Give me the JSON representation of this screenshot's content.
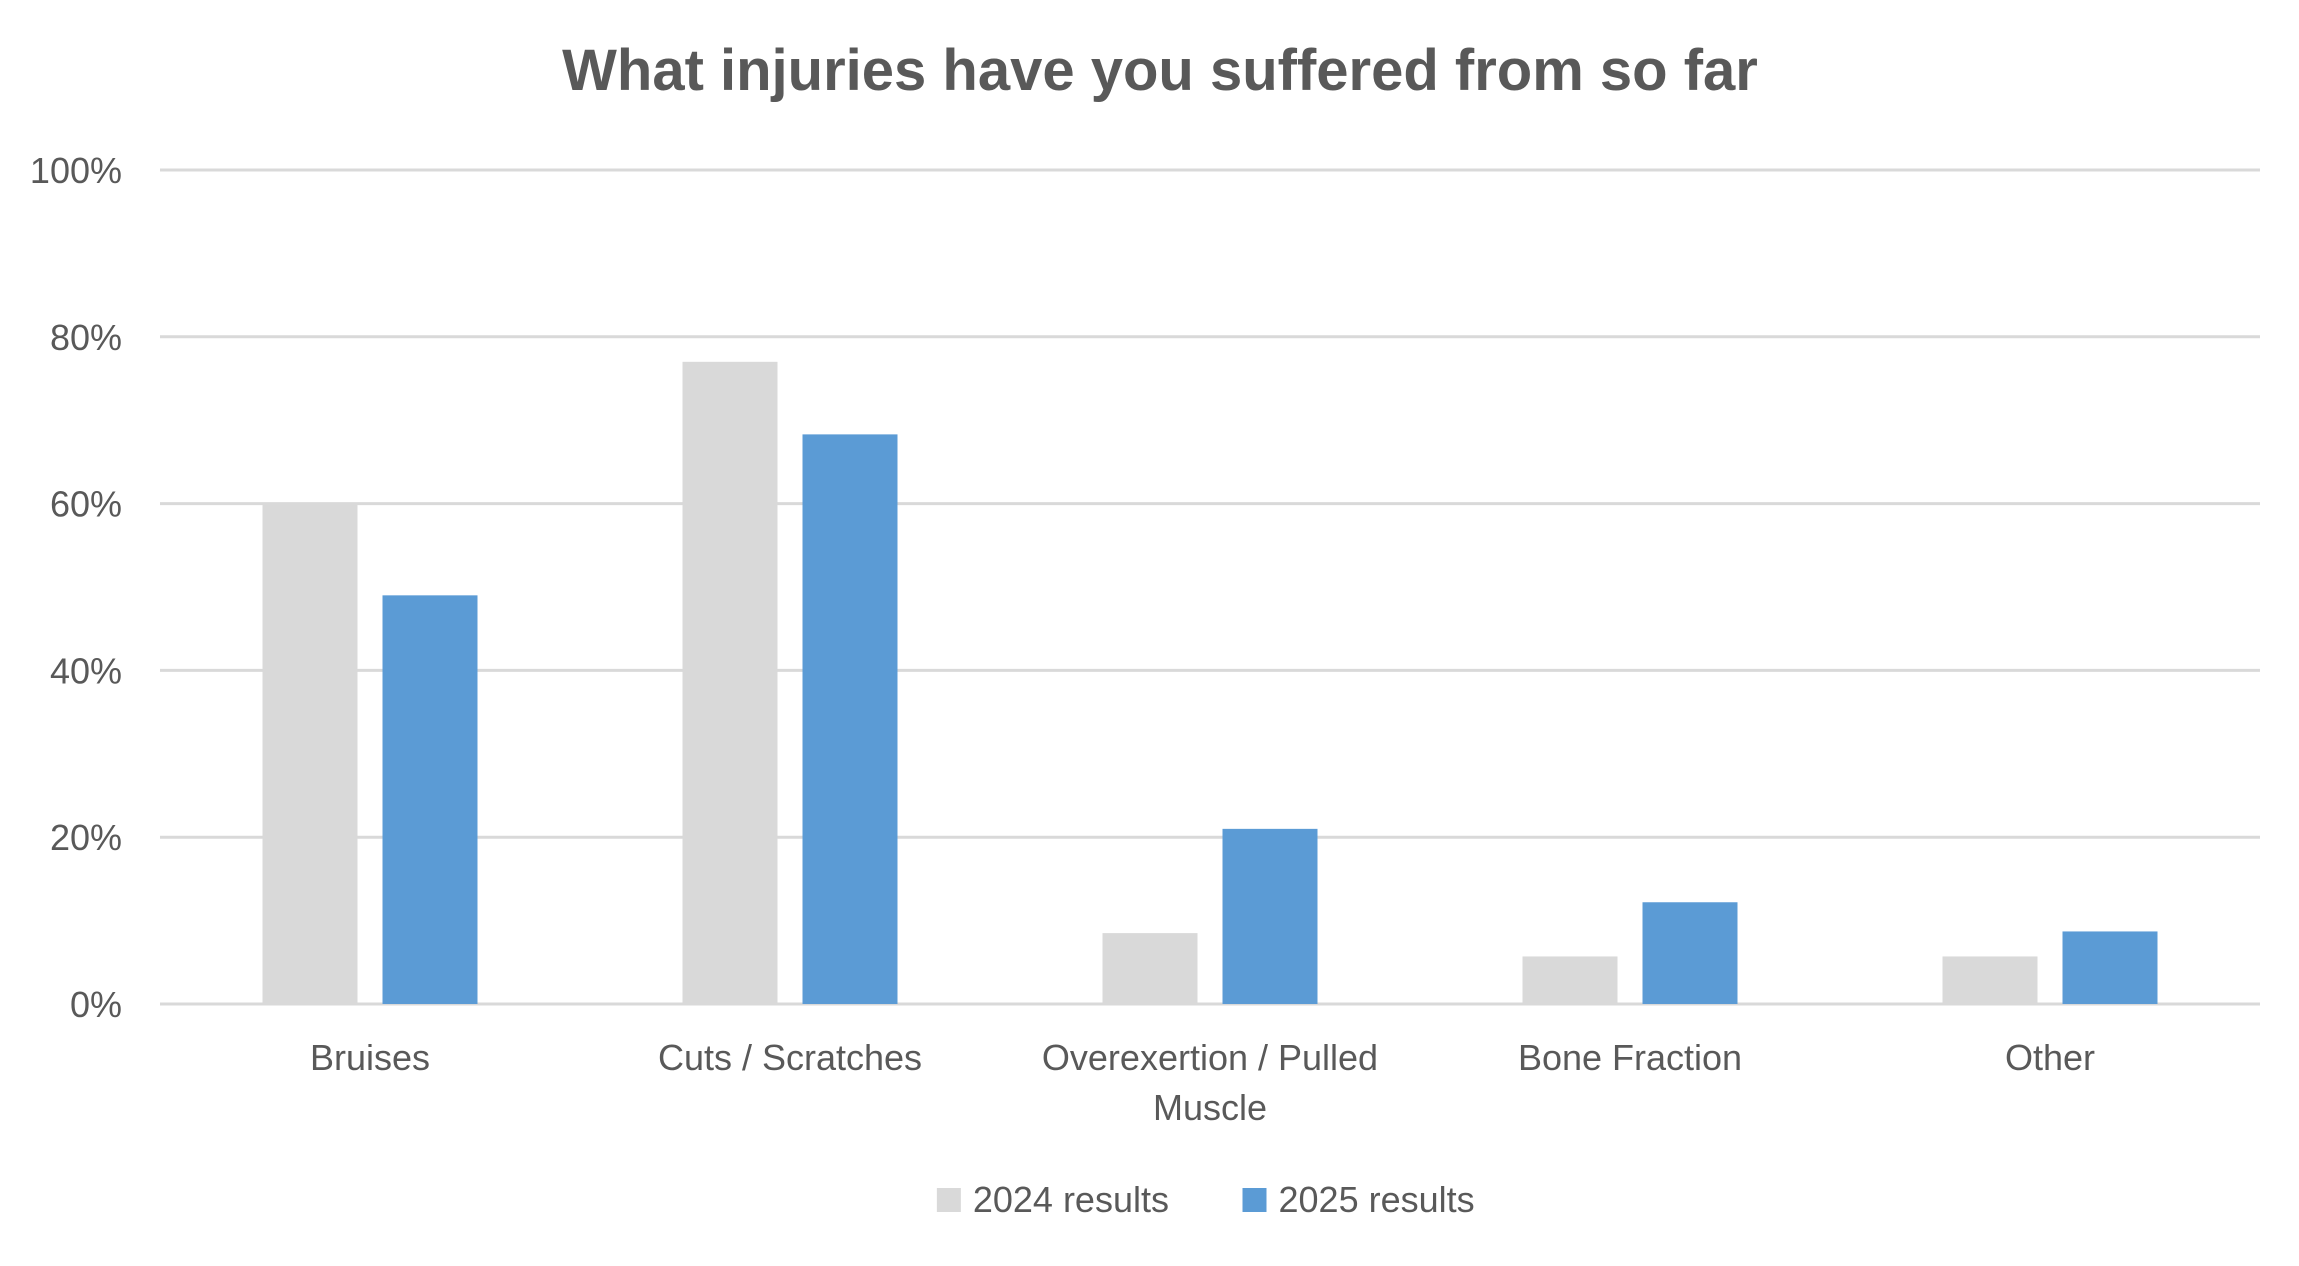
{
  "chart_data": {
    "type": "bar",
    "title": "What injuries have you suffered from so far",
    "categories": [
      [
        "Bruises"
      ],
      [
        "Cuts / Scratches"
      ],
      [
        "Overexertion / Pulled",
        "Muscle"
      ],
      [
        "Bone Fraction"
      ],
      [
        "Other"
      ]
    ],
    "series": [
      {
        "name": "2024 results",
        "color": "#d9d9d9",
        "values": [
          60,
          77,
          8.5,
          5.7,
          5.7
        ]
      },
      {
        "name": "2025 results",
        "color": "#5b9bd5",
        "values": [
          49,
          68.3,
          21,
          12.2,
          8.7
        ]
      }
    ],
    "ylim": [
      0,
      100
    ],
    "yticks": [
      0,
      20,
      40,
      60,
      80,
      100
    ],
    "ytick_labels": [
      "0%",
      "20%",
      "40%",
      "60%",
      "80%",
      "100%"
    ],
    "grid": true,
    "legend_position": "bottom",
    "colors": {
      "title": "#595959",
      "text": "#595959",
      "grid": "#d9d9d9"
    }
  }
}
